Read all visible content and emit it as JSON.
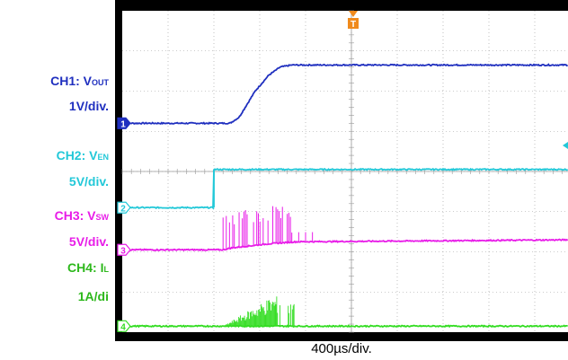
{
  "chart_data": {
    "type": "line",
    "title": "",
    "time_per_div": "400µs/div.",
    "divisions": {
      "x": 10,
      "y": 8
    },
    "trigger_marker": "T",
    "channels": [
      {
        "id": 1,
        "name_prefix": "CH1: V",
        "name_sub": "OUT",
        "scale": "1V/div.",
        "color": "#1f2fbf",
        "label_color": "#1f2fbf",
        "marker": "1",
        "ground_div": 5.2,
        "points": [
          [
            0,
            0.0
          ],
          [
            2.35,
            0.0
          ],
          [
            2.55,
            0.15
          ],
          [
            2.9,
            0.8
          ],
          [
            3.2,
            1.2
          ],
          [
            3.45,
            1.4
          ],
          [
            3.7,
            1.45
          ],
          [
            4.5,
            1.45
          ],
          [
            10,
            1.45
          ]
        ]
      },
      {
        "id": 2,
        "name_prefix": "CH2: V",
        "name_sub": "EN",
        "scale": "5V/div.",
        "color": "#22c8d8",
        "label_color": "#22c8d8",
        "marker": "2",
        "ground_div": 3.1,
        "points": [
          [
            0,
            0.0
          ],
          [
            2.0,
            0.0
          ],
          [
            2.0,
            0.95
          ],
          [
            10,
            0.95
          ]
        ]
      },
      {
        "id": 3,
        "name_prefix": "CH3: V",
        "name_sub": "SW",
        "scale": "5V/div.",
        "color": "#e81ce8",
        "label_color": "#e81ce8",
        "marker": "3",
        "ground_div": 2.05,
        "points": [
          [
            0,
            0.0
          ],
          [
            2.2,
            0.0
          ],
          [
            2.4,
            0.05
          ],
          [
            3.2,
            0.15
          ],
          [
            3.8,
            0.2
          ],
          [
            10,
            0.25
          ]
        ],
        "switching": {
          "start": 2.2,
          "end": 3.7,
          "peak": 0.95
        }
      },
      {
        "id": 4,
        "name_prefix": "CH4: I",
        "name_sub": "L",
        "scale": "1A/di",
        "color": "#33dd22",
        "label_color": "#2db81c",
        "marker": "4",
        "ground_div": 0.15,
        "points": [
          [
            0,
            0.0
          ],
          [
            10,
            0.0
          ]
        ],
        "burst": {
          "start": 2.2,
          "end": 3.8,
          "peak": 0.75
        }
      }
    ]
  }
}
